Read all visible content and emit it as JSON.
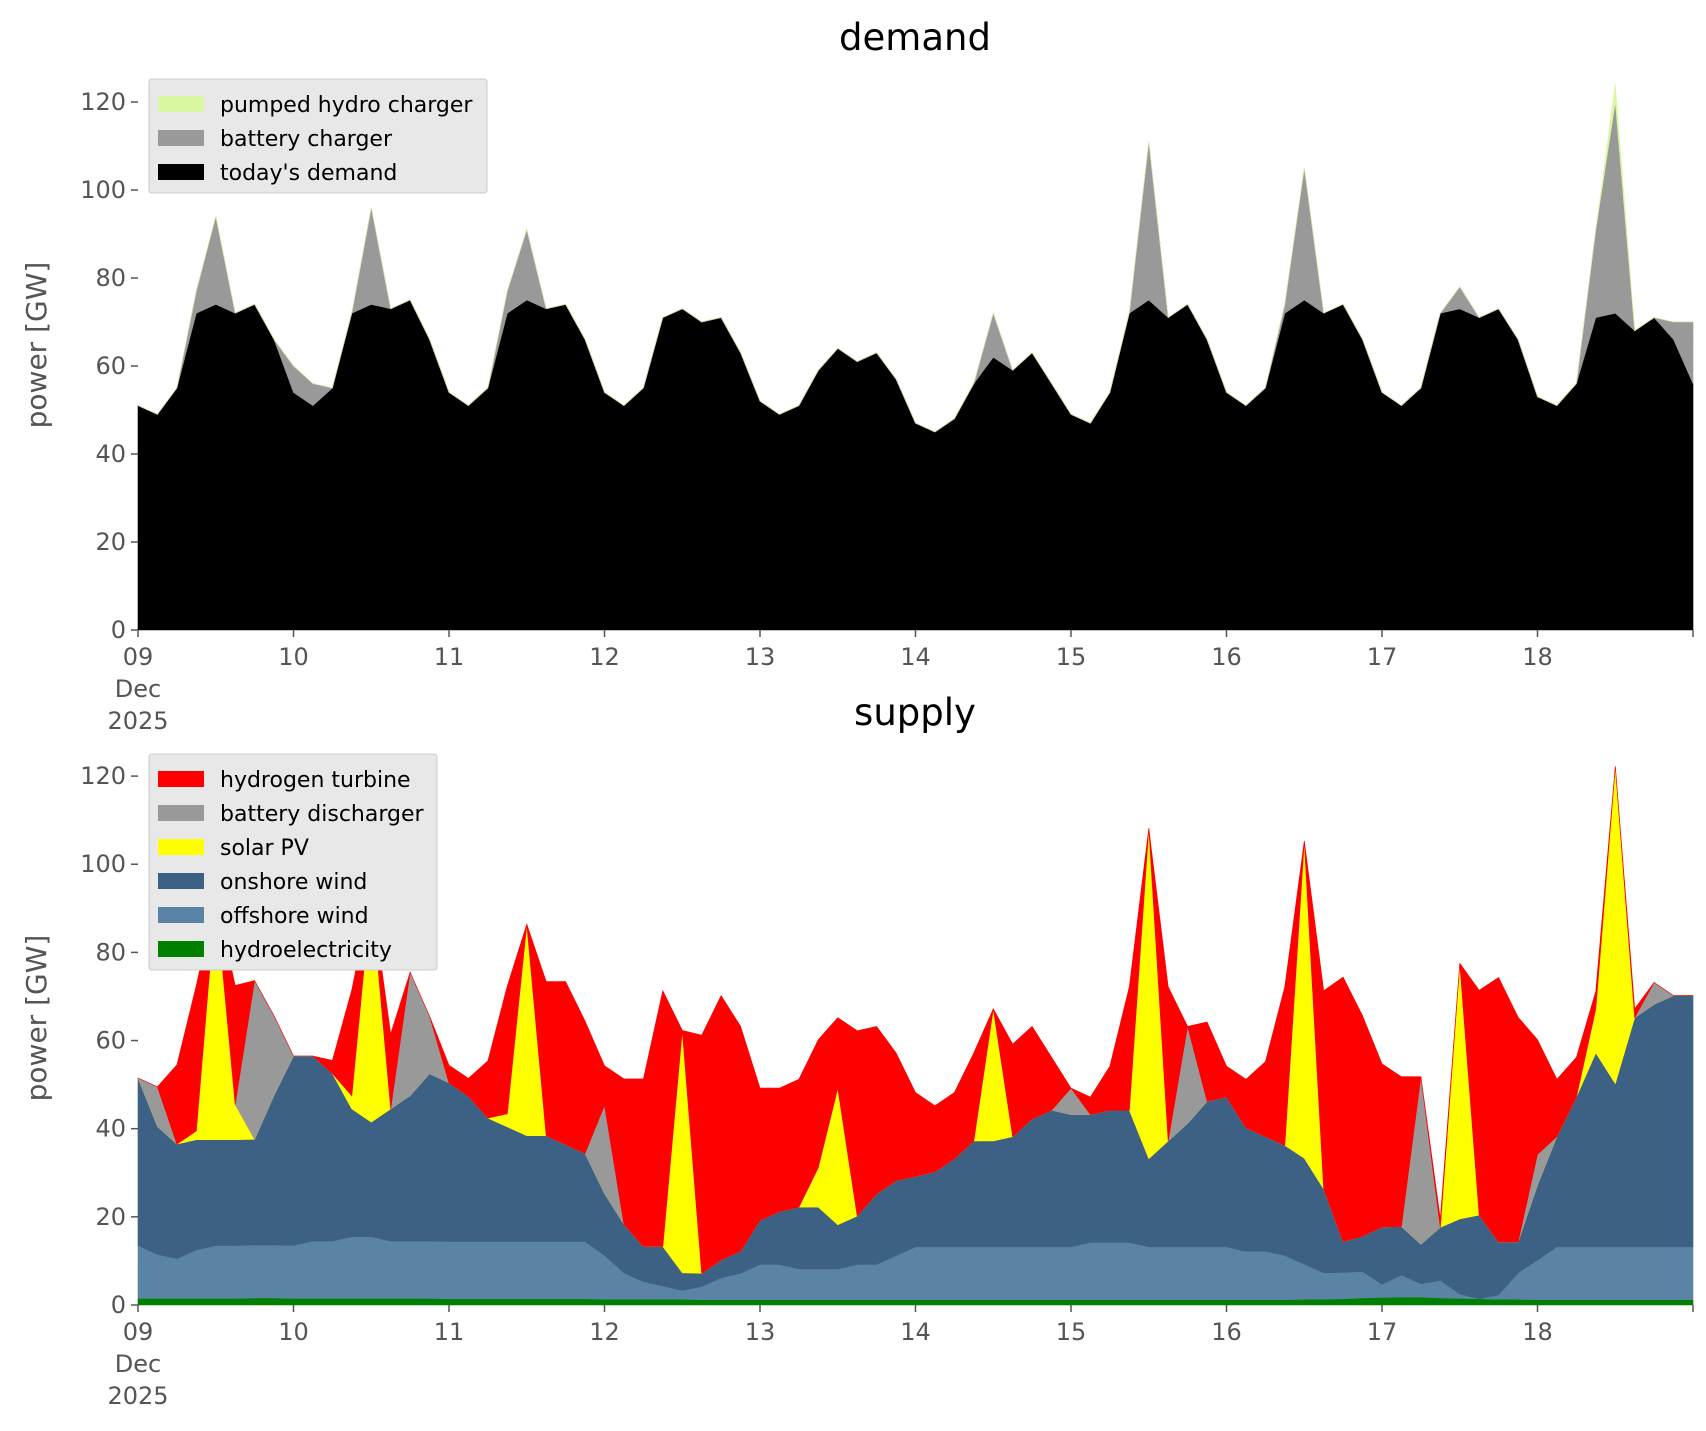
{
  "chart_data": [
    {
      "type": "area",
      "stacked": true,
      "title": "demand",
      "ylabel": "power [GW]",
      "xlabel": "",
      "x_ticks": [
        "09",
        "10",
        "11",
        "12",
        "13",
        "14",
        "15",
        "16",
        "17",
        "18"
      ],
      "x_first_tick_sublabels": [
        "Dec",
        "2025"
      ],
      "x_range": [
        "2025-12-09 00:00",
        "2025-12-19 00:00"
      ],
      "ylim": [
        0,
        130
      ],
      "y_ticks": [
        0,
        20,
        40,
        60,
        80,
        100,
        120
      ],
      "grid": false,
      "legend_position": "upper-left",
      "x_days": [
        0,
        0.125,
        0.25,
        0.375,
        0.5,
        0.625,
        0.75,
        0.875,
        1,
        1.125,
        1.25,
        1.375,
        1.5,
        1.625,
        1.75,
        1.875,
        2,
        2.125,
        2.25,
        2.375,
        2.5,
        2.625,
        2.75,
        2.875,
        3,
        3.125,
        3.25,
        3.375,
        3.5,
        3.625,
        3.75,
        3.875,
        4,
        4.125,
        4.25,
        4.375,
        4.5,
        4.625,
        4.75,
        4.875,
        5,
        5.125,
        5.25,
        5.375,
        5.5,
        5.625,
        5.75,
        5.875,
        6,
        6.125,
        6.25,
        6.375,
        6.5,
        6.625,
        6.75,
        6.875,
        7,
        7.125,
        7.25,
        7.375,
        7.5,
        7.625,
        7.75,
        7.875,
        8,
        8.125,
        8.25,
        8.375,
        8.5,
        8.625,
        8.75,
        8.875,
        9,
        9.125,
        9.25,
        9.375,
        9.5,
        9.625,
        9.75,
        9.875,
        10
      ],
      "series": [
        {
          "name": "today's demand",
          "color": "#000000",
          "values": [
            51,
            49,
            55,
            72,
            74,
            72,
            74,
            66,
            54,
            51,
            55,
            72,
            74,
            73,
            75,
            66,
            54,
            51,
            55,
            72,
            75,
            73,
            74,
            66,
            54,
            51,
            55,
            71,
            73,
            70,
            71,
            63,
            52,
            49,
            51,
            59,
            64,
            61,
            63,
            57,
            47,
            45,
            48,
            56,
            62,
            59,
            63,
            56,
            49,
            47,
            54,
            72,
            75,
            71,
            74,
            66,
            54,
            51,
            55,
            72,
            75,
            72,
            74,
            66,
            54,
            51,
            55,
            72,
            73,
            71,
            73,
            66,
            53,
            51,
            56,
            71,
            72,
            68,
            71,
            66,
            56
          ]
        },
        {
          "name": "battery charger",
          "color": "#999999",
          "values": [
            0,
            0,
            0,
            5,
            20,
            0,
            0,
            0,
            6,
            5,
            0,
            0,
            22,
            0,
            0,
            0,
            0,
            0,
            0,
            5,
            16,
            0,
            0,
            0,
            0,
            0,
            0,
            0,
            0,
            0,
            0,
            0,
            0,
            0,
            0,
            0,
            0,
            0,
            0,
            0,
            0,
            0,
            0,
            0,
            10,
            0,
            0,
            0,
            0,
            0,
            0,
            0,
            36,
            0,
            0,
            0,
            0,
            0,
            0,
            2,
            30,
            0,
            0,
            0,
            0,
            0,
            0,
            0,
            5,
            0,
            0,
            0,
            0,
            0,
            0,
            20,
            48,
            0,
            0,
            4,
            14
          ]
        },
        {
          "name": "pumped hydro charger",
          "color": "#d9f7a1",
          "values": [
            0,
            0,
            0,
            0,
            0,
            0,
            0,
            0,
            0,
            0,
            0,
            0,
            0,
            0,
            0,
            0,
            0,
            0,
            0,
            0,
            0,
            0,
            0,
            0,
            0,
            0,
            0,
            0,
            0,
            0,
            0,
            0,
            0,
            0,
            0,
            0,
            0,
            0,
            0,
            0,
            0,
            0,
            0,
            0,
            0,
            0,
            0,
            0,
            0,
            0,
            0,
            0,
            0,
            0,
            0,
            0,
            0,
            0,
            0,
            0,
            0,
            0,
            0,
            0,
            0,
            0,
            0,
            0,
            0,
            0,
            0,
            0,
            0,
            0,
            0,
            0,
            4,
            0,
            0,
            0,
            0
          ]
        }
      ]
    },
    {
      "type": "area",
      "stacked": true,
      "title": "supply",
      "ylabel": "power [GW]",
      "xlabel": "",
      "x_ticks": [
        "09",
        "10",
        "11",
        "12",
        "13",
        "14",
        "15",
        "16",
        "17",
        "18"
      ],
      "x_first_tick_sublabels": [
        "Dec",
        "2025"
      ],
      "x_range": [
        "2025-12-09 00:00",
        "2025-12-19 00:00"
      ],
      "ylim": [
        0,
        130
      ],
      "y_ticks": [
        0,
        20,
        40,
        60,
        80,
        100,
        120
      ],
      "grid": false,
      "legend_position": "upper-left",
      "x_days": [
        0,
        0.125,
        0.25,
        0.375,
        0.5,
        0.625,
        0.75,
        0.875,
        1,
        1.125,
        1.25,
        1.375,
        1.5,
        1.625,
        1.75,
        1.875,
        2,
        2.125,
        2.25,
        2.375,
        2.5,
        2.625,
        2.75,
        2.875,
        3,
        3.125,
        3.25,
        3.375,
        3.5,
        3.625,
        3.75,
        3.875,
        4,
        4.125,
        4.25,
        4.375,
        4.5,
        4.625,
        4.75,
        4.875,
        5,
        5.125,
        5.25,
        5.375,
        5.5,
        5.625,
        5.75,
        5.875,
        6,
        6.125,
        6.25,
        6.375,
        6.5,
        6.625,
        6.75,
        6.875,
        7,
        7.125,
        7.25,
        7.375,
        7.5,
        7.625,
        7.75,
        7.875,
        8,
        8.125,
        8.25,
        8.375,
        8.5,
        8.625,
        8.75,
        8.875,
        9,
        9.125,
        9.25,
        9.375,
        9.5,
        9.625,
        9.75,
        9.875,
        10
      ],
      "series": [
        {
          "name": "hydroelectricity",
          "color": "#008000",
          "values": [
            1.5,
            1.5,
            1.5,
            1.5,
            1.5,
            1.5,
            1.6,
            1.6,
            1.5,
            1.5,
            1.5,
            1.5,
            1.5,
            1.5,
            1.5,
            1.5,
            1.4,
            1.4,
            1.4,
            1.4,
            1.4,
            1.4,
            1.4,
            1.4,
            1.3,
            1.3,
            1.3,
            1.3,
            1.3,
            1.2,
            1.2,
            1.2,
            1.2,
            1.2,
            1.2,
            1.2,
            1.2,
            1.2,
            1.2,
            1.2,
            1.2,
            1.2,
            1.2,
            1.2,
            1.2,
            1.2,
            1.2,
            1.2,
            1.2,
            1.2,
            1.2,
            1.2,
            1.2,
            1.2,
            1.2,
            1.2,
            1.2,
            1.2,
            1.2,
            1.2,
            1.3,
            1.3,
            1.4,
            1.6,
            1.7,
            1.8,
            1.8,
            1.6,
            1.5,
            1.4,
            1.3,
            1.3,
            1.2,
            1.2,
            1.2,
            1.2,
            1.2,
            1.2,
            1.2,
            1.2,
            1.2
          ]
        },
        {
          "name": "offshore wind",
          "color": "#5b83a5",
          "values": [
            12,
            10,
            9,
            11,
            12,
            12,
            12,
            12,
            12,
            13,
            13,
            14,
            14,
            13,
            13,
            13,
            13,
            13,
            13,
            13,
            13,
            13,
            13,
            13,
            10,
            6,
            4,
            3,
            2,
            3,
            5,
            6,
            8,
            8,
            7,
            7,
            7,
            8,
            8,
            10,
            12,
            12,
            12,
            12,
            12,
            12,
            12,
            12,
            12,
            13,
            13,
            13,
            12,
            12,
            12,
            12,
            12,
            11,
            11,
            10,
            8,
            6,
            6,
            6,
            3,
            5,
            3,
            4,
            1,
            0,
            1,
            6,
            9,
            12,
            12,
            12,
            12,
            12,
            12,
            12,
            12
          ]
        },
        {
          "name": "onshore wind",
          "color": "#3d6184",
          "values": [
            38,
            29,
            26,
            25,
            24,
            24,
            24,
            34,
            43,
            42,
            38,
            29,
            26,
            30,
            33,
            38,
            36,
            33,
            28,
            26,
            24,
            24,
            22,
            20,
            14,
            11,
            8,
            9,
            4,
            3,
            4,
            5,
            10,
            12,
            14,
            14,
            10,
            11,
            16,
            17,
            16,
            17,
            20,
            24,
            24,
            25,
            29,
            31,
            30,
            29,
            30,
            30,
            20,
            24,
            28,
            33,
            34,
            28,
            26,
            25,
            24,
            19,
            7,
            8,
            13,
            11,
            9,
            12,
            17,
            19,
            12,
            7,
            17,
            25,
            34,
            44,
            37,
            52,
            55,
            57,
            57
          ]
        },
        {
          "name": "solar PV",
          "color": "#ffff00",
          "values": [
            0,
            0,
            0,
            2,
            55,
            8,
            0,
            0,
            0,
            0,
            0,
            3,
            52,
            0,
            0,
            0,
            0,
            0,
            0,
            3,
            48,
            0,
            0,
            0,
            0,
            0,
            0,
            0,
            55,
            0,
            0,
            0,
            0,
            0,
            0,
            9,
            31,
            0,
            0,
            0,
            0,
            0,
            0,
            0,
            30,
            0,
            0,
            0,
            0,
            0,
            0,
            0,
            75,
            0,
            0,
            0,
            0,
            0,
            0,
            0,
            72,
            0,
            0,
            0,
            0,
            0,
            0,
            0,
            58,
            0,
            0,
            0,
            0,
            0,
            0,
            10,
            72,
            0,
            0,
            0,
            0
          ]
        },
        {
          "name": "battery discharger",
          "color": "#999999",
          "values": [
            0,
            9,
            0,
            0,
            0,
            0,
            36,
            18,
            0,
            0,
            0,
            0,
            0,
            0,
            28,
            13,
            0,
            0,
            0,
            0,
            0,
            0,
            0,
            0,
            20,
            0,
            0,
            0,
            0,
            0,
            0,
            0,
            0,
            0,
            0,
            0,
            0,
            0,
            0,
            0,
            0,
            0,
            0,
            0,
            0,
            0,
            0,
            0,
            6,
            0,
            0,
            0,
            0,
            0,
            22,
            0,
            0,
            0,
            0,
            0,
            0,
            0,
            0,
            0,
            0,
            0,
            38,
            0,
            0,
            0,
            0,
            0,
            7,
            0,
            0,
            0,
            0,
            0,
            5,
            0,
            0
          ]
        },
        {
          "name": "hydrogen turbine",
          "color": "#ff0000",
          "values": [
            0,
            0,
            18,
            33,
            0,
            27,
            0,
            0,
            0,
            0,
            3,
            24,
            0,
            17,
            0,
            0,
            4,
            4,
            13,
            29,
            0,
            35,
            37,
            30,
            9,
            33,
            38,
            58,
            0,
            54,
            60,
            51,
            30,
            28,
            29,
            29,
            16,
            42,
            38,
            29,
            19,
            15,
            15,
            20,
            0,
            21,
            21,
            12,
            0,
            4,
            10,
            28,
            0,
            35,
            0,
            18,
            7,
            11,
            17,
            36,
            0,
            45,
            60,
            50,
            37,
            34,
            0,
            2,
            0,
            51,
            60,
            51,
            26,
            13,
            9,
            4,
            0,
            2,
            0,
            0,
            0
          ]
        }
      ]
    }
  ]
}
